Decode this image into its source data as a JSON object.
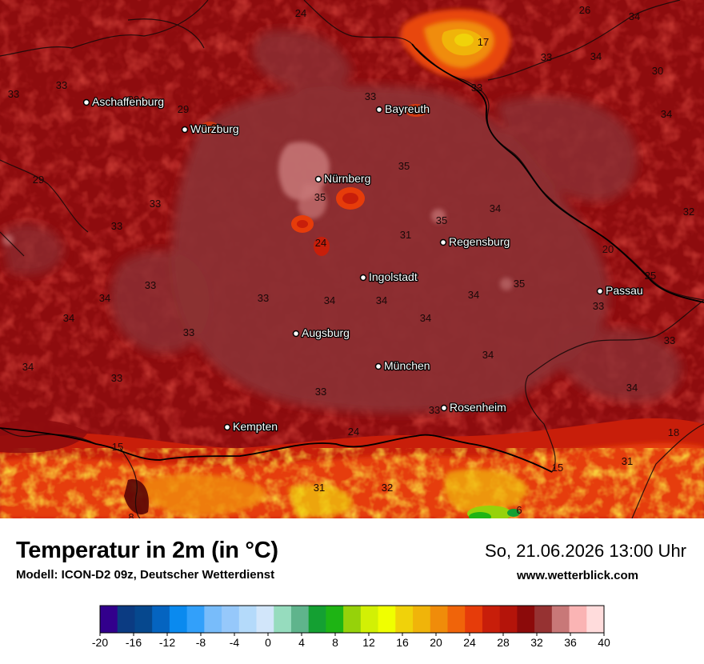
{
  "title": "Temperatur in 2m (in °C)",
  "model": "Modell: ICON-D2 09z, Deutscher Wetterdienst",
  "datetime": "So, 21.06.2026 13:00 Uhr",
  "website": "www.wetterblick.com",
  "cities": [
    {
      "name": "Aschaffenburg"
    },
    {
      "name": "Würzburg"
    },
    {
      "name": "Bayreuth"
    },
    {
      "name": "Nürnberg"
    },
    {
      "name": "Regensburg"
    },
    {
      "name": "Ingolstadt"
    },
    {
      "name": "Passau"
    },
    {
      "name": "Augsburg"
    },
    {
      "name": "München"
    },
    {
      "name": "Rosenheim"
    },
    {
      "name": "Kempten"
    }
  ],
  "value_labels": [
    "24",
    "26",
    "34",
    "17",
    "33",
    "34",
    "30",
    "33",
    "33",
    "28",
    "29",
    "33",
    "20",
    "33",
    "34",
    "33",
    "29",
    "35",
    "33",
    "35",
    "35",
    "34",
    "32",
    "33",
    "24",
    "31",
    "35",
    "33",
    "20",
    "25",
    "34",
    "33",
    "34",
    "34",
    "34",
    "34",
    "33",
    "34",
    "33",
    "34",
    "33",
    "34",
    "33",
    "33",
    "34",
    "33",
    "18",
    "24",
    "15",
    "15",
    "31",
    "31",
    "32",
    "8",
    "6"
  ],
  "legend": {
    "ticks": [
      "-20",
      "-16",
      "-12",
      "-8",
      "-4",
      "0",
      "4",
      "8",
      "12",
      "16",
      "20",
      "24",
      "28",
      "32",
      "36",
      "40"
    ],
    "colors": [
      "#32008c",
      "#0b3b82",
      "#06488e",
      "#0564c0",
      "#0a8aef",
      "#32a0fa",
      "#78bcfa",
      "#96c8fa",
      "#b4dafa",
      "#d2e6fa",
      "#96dcbe",
      "#5fb48c",
      "#14a032",
      "#1eb414",
      "#96d20a",
      "#d2f005",
      "#f0ff00",
      "#f0d20a",
      "#f0b40a",
      "#f08c0a",
      "#f0640a",
      "#e63c0a",
      "#c81e0a",
      "#b4140a",
      "#8c0a0a",
      "#963232",
      "#c87878",
      "#fab4b4",
      "#ffdcdc"
    ]
  }
}
